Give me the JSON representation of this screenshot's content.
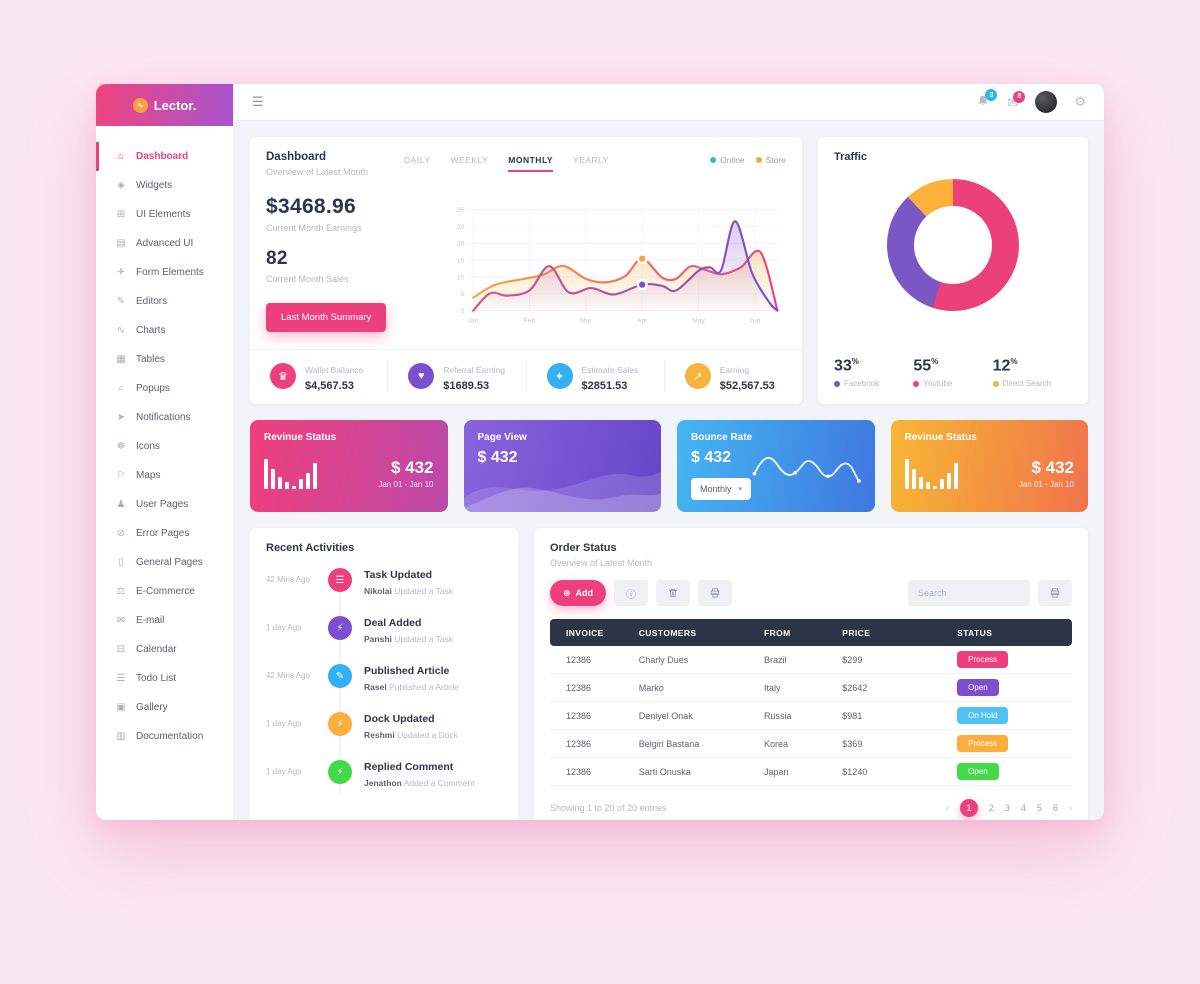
{
  "app": {
    "logo": "Lector.",
    "logo_glyph": "∿"
  },
  "sidebar": {
    "items": [
      {
        "label": "Dashboard",
        "glyph": "⌂"
      },
      {
        "label": "Widgets",
        "glyph": "◈"
      },
      {
        "label": "UI Elements",
        "glyph": "⊞"
      },
      {
        "label": "Advanced UI",
        "glyph": "▤"
      },
      {
        "label": "Form Elements",
        "glyph": "✈"
      },
      {
        "label": "Editors",
        "glyph": "✎"
      },
      {
        "label": "Charts",
        "glyph": "∿"
      },
      {
        "label": "Tables",
        "glyph": "▦"
      },
      {
        "label": "Popups",
        "glyph": "⌕"
      },
      {
        "label": "Notifications",
        "glyph": "➤"
      },
      {
        "label": "Icons",
        "glyph": "☸"
      },
      {
        "label": "Maps",
        "glyph": "⚐"
      },
      {
        "label": "User Pages",
        "glyph": "♟"
      },
      {
        "label": "Error Pages",
        "glyph": "⊘"
      },
      {
        "label": "General Pages",
        "glyph": "▯"
      },
      {
        "label": "E-Commerce",
        "glyph": "⚖"
      },
      {
        "label": "E-mail",
        "glyph": "✉"
      },
      {
        "label": "Calendar",
        "glyph": "⊟"
      },
      {
        "label": "Todo List",
        "glyph": "☰"
      },
      {
        "label": "Gallery",
        "glyph": "▣"
      },
      {
        "label": "Documentation",
        "glyph": "▥"
      }
    ]
  },
  "topbar": {
    "menu_glyph": "☰",
    "bell_badge": "3",
    "mail_badge": "8",
    "mail_glyph": "✉",
    "gear_glyph": "⚙"
  },
  "dashboard": {
    "title": "Dashboard",
    "subtitle": "Overview of Latest Month",
    "earnings": "$3468.96",
    "earnings_label": "Current Month Earnings",
    "sales": "82",
    "sales_label": "Current Month Sales",
    "button": "Last Month Summary",
    "tabs": [
      {
        "label": "DAILY"
      },
      {
        "label": "WEEKLY"
      },
      {
        "label": "MONTHLY"
      },
      {
        "label": "YEARLY"
      }
    ],
    "active_tab": "MONTHLY",
    "legend": [
      {
        "label": "Online",
        "color": "#36b0f5"
      },
      {
        "label": "Store",
        "color": "#f9a13c"
      }
    ]
  },
  "chart_data": {
    "type": "area",
    "x_axis": [
      "Jan",
      "Feb",
      "Mar",
      "Apr",
      "May",
      "Jun"
    ],
    "y_ticks": [
      "35",
      "30",
      "20",
      "15",
      "10",
      "5",
      "0"
    ],
    "legend": [
      {
        "name": "Online",
        "color": "#36b0f5"
      },
      {
        "name": "Store",
        "color": "#f9a13c"
      }
    ],
    "series": [
      {
        "name": "Store",
        "colors": [
          "#f7a73c",
          "#f0705a",
          "#e8417c"
        ],
        "fill": "#f7a73c",
        "points": [
          [
            0,
            4.5
          ],
          [
            0.08,
            9
          ],
          [
            0.18,
            11
          ],
          [
            0.25,
            12.5
          ],
          [
            0.32,
            15.5
          ],
          [
            0.4,
            11
          ],
          [
            0.47,
            9.8
          ],
          [
            0.54,
            12
          ],
          [
            0.6,
            18
          ],
          [
            0.67,
            11.5
          ],
          [
            0.72,
            11
          ],
          [
            0.77,
            15.3
          ],
          [
            0.82,
            14.3
          ],
          [
            0.88,
            12.6
          ],
          [
            0.95,
            15
          ],
          [
            1.02,
            20.2
          ],
          [
            1.08,
            0
          ]
        ]
      },
      {
        "name": "Online",
        "colors": [
          "#ea4b7a",
          "#b050a2",
          "#7450cf"
        ],
        "fill": "#9b59d6",
        "points": [
          [
            0,
            0
          ],
          [
            0.06,
            6
          ],
          [
            0.12,
            5.2
          ],
          [
            0.2,
            7
          ],
          [
            0.27,
            15.4
          ],
          [
            0.34,
            6.3
          ],
          [
            0.42,
            7.8
          ],
          [
            0.5,
            5.6
          ],
          [
            0.6,
            9
          ],
          [
            0.67,
            8.6
          ],
          [
            0.72,
            7
          ],
          [
            0.8,
            13.8
          ],
          [
            0.84,
            15
          ],
          [
            0.88,
            14
          ],
          [
            0.93,
            31
          ],
          [
            0.99,
            13
          ],
          [
            1.05,
            3
          ],
          [
            1.08,
            0
          ]
        ]
      }
    ],
    "markers": [
      {
        "x": 0.6,
        "y": 18,
        "color": "#f9a13c"
      },
      {
        "x": 0.6,
        "y": 9,
        "color": "#7b52c7"
      }
    ]
  },
  "stats": [
    {
      "label": "Wallet Ballance",
      "value": "$4,567.53",
      "color": "#ee3f7d",
      "glyph": "♛"
    },
    {
      "label": "Referral Earning",
      "value": "$1689.53",
      "color": "#7c4fd0",
      "glyph": "♥"
    },
    {
      "label": "Estimate Sales",
      "value": "$2851.53",
      "color": "#36b0f5",
      "glyph": "✦"
    },
    {
      "label": "Earning",
      "value": "$52,567.53",
      "color": "#f5b43c",
      "glyph": "↗"
    }
  ],
  "traffic": {
    "title": "Traffic",
    "chart": {
      "type": "pie",
      "segments": [
        {
          "label": "Youtube",
          "pct": 55,
          "color": "#ec4079"
        },
        {
          "label": "Facebook",
          "pct": 33,
          "color": "#7b57c5"
        },
        {
          "label": "Direct Search",
          "pct": 12,
          "color": "#fbb13c"
        }
      ]
    },
    "stats": [
      {
        "pct": "33",
        "unit": "%",
        "label": "Facebook",
        "color": "#7b57c5"
      },
      {
        "pct": "55",
        "unit": "%",
        "label": "Youtube",
        "color": "#ec4079"
      },
      {
        "pct": "12",
        "unit": "%",
        "label": "Direct Search",
        "color": "#fbb13c"
      }
    ]
  },
  "mini_cards": [
    {
      "title": "Revinue Status",
      "value": "$ 432",
      "range": "Jan 01 - Jan 10"
    },
    {
      "title": "Page View",
      "value": "$ 432"
    },
    {
      "title": "Bounce Rate",
      "value": "$ 432",
      "dropdown": "Monthly",
      "dropdown_caret": "▾"
    },
    {
      "title": "Revinue Status",
      "value": "$ 432",
      "range": "Jan 01 - Jan 10"
    }
  ],
  "activities": {
    "title": "Recent Activities",
    "items": [
      {
        "time": "42 Mins Ago",
        "glyph": "☰",
        "color": "#ee3f7d",
        "title": "Task Updated",
        "name": "Nikolai",
        "desc": " Updated a Task"
      },
      {
        "time": "1 day Ago",
        "glyph": "⚡",
        "color": "#7c4fd0",
        "title": "Deal Added",
        "name": "Panshi",
        "desc": " Updated a Task"
      },
      {
        "time": "42 Mins Ago",
        "glyph": "✎",
        "color": "#36b0f5",
        "title": "Published Article",
        "name": "Rasel",
        "desc": " Published a Article"
      },
      {
        "time": "1 day Ago",
        "glyph": "⚡",
        "color": "#fbae3c",
        "title": "Dock Updated",
        "name": "Reshmi",
        "desc": " Updated a Dock"
      },
      {
        "time": "1 day Ago",
        "glyph": "⚡",
        "color": "#43d94b",
        "title": "Replied Comment",
        "name": "Jenathon",
        "desc": " Added a Comment"
      }
    ]
  },
  "orders": {
    "title": "Order Status",
    "subtitle": "Overview of Latest Month",
    "add_label": "Add",
    "add_glyph": "⊕",
    "info_glyph": "ⓘ",
    "search_placeholder": "Search",
    "columns": [
      "INVOICE",
      "CUSTOMERS",
      "FROM",
      "PRICE",
      "STATUS"
    ],
    "rows": [
      {
        "invoice": "12386",
        "customer": "Charly Dues",
        "from": "Brazil",
        "price": "$299",
        "status": "Process",
        "status_color": "#ee3f7d"
      },
      {
        "invoice": "12386",
        "customer": "Marko",
        "from": "Italy",
        "price": "$2642",
        "status": "Open",
        "status_color": "#7c4fd0"
      },
      {
        "invoice": "12386",
        "customer": "Deniyel Onak",
        "from": "Russia",
        "price": "$981",
        "status": "On Hold",
        "status_color": "#4fc1f5"
      },
      {
        "invoice": "12386",
        "customer": "Belgiri Bastana",
        "from": "Korea",
        "price": "$369",
        "status": "Process",
        "status_color": "#fbae3c"
      },
      {
        "invoice": "12386",
        "customer": "Sarti Onuska",
        "from": "Japan",
        "price": "$1240",
        "status": "Open",
        "status_color": "#43d94b"
      }
    ],
    "showing": "Showing 1 to 20 of 20 entries",
    "pagination": {
      "prev": "‹",
      "next": "›",
      "pages": [
        "1",
        "2",
        "3",
        "4",
        "5",
        "6"
      ],
      "active": "1"
    }
  }
}
